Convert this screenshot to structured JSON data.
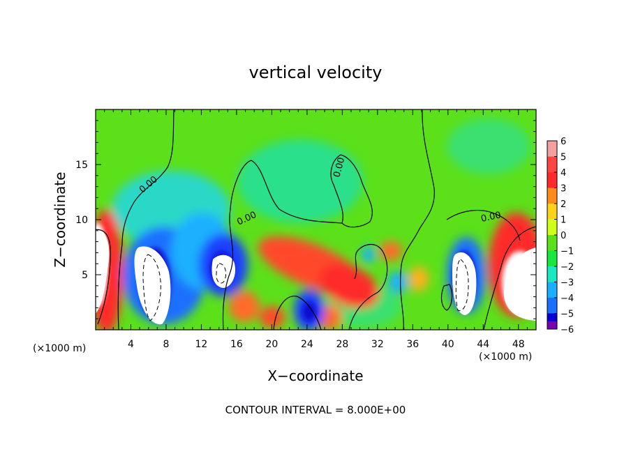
{
  "chart_data": {
    "type": "heatmap",
    "title": "vertical velocity",
    "xlabel": "X−coordinate",
    "ylabel": "Z−coordinate",
    "x_unit_left": "(×1000 m)",
    "x_unit_right": "(×1000 m)",
    "footer": "CONTOUR INTERVAL = 8.000E+00",
    "contour_label": "0.00",
    "xlim": [
      0,
      50
    ],
    "ylim": [
      0,
      20
    ],
    "x_ticks": [
      4,
      8,
      12,
      16,
      20,
      24,
      28,
      32,
      36,
      40,
      44,
      48
    ],
    "y_ticks": [
      5,
      10,
      15
    ],
    "colorbar": {
      "levels": [
        "6",
        "5",
        "4",
        "3",
        "2",
        "1",
        "0",
        "−1",
        "−2",
        "−3",
        "−4",
        "−5",
        "−6"
      ],
      "colors": [
        "#f4a0a0",
        "#ff4444",
        "#ff2a2a",
        "#ff8c1a",
        "#ffd21a",
        "#cfff1a",
        "#5ce01a",
        "#16e840",
        "#1ae8c0",
        "#1ab0ff",
        "#1a70ff",
        "#0000d0",
        "#7a00b0"
      ]
    },
    "features": [
      {
        "kind": "updraft",
        "x": 0.6,
        "z": 6.5,
        "value": 6
      },
      {
        "kind": "downdraft",
        "x": 6.5,
        "z": 4.5,
        "value": -6
      },
      {
        "kind": "downdraft",
        "x": 14.0,
        "z": 6.0,
        "value": -5
      },
      {
        "kind": "updraft",
        "x": 25.5,
        "z": 5.5,
        "value": 4
      },
      {
        "kind": "downdraft",
        "x": 24.0,
        "z": 1.5,
        "value": -5
      },
      {
        "kind": "downdraft",
        "x": 42.0,
        "z": 4.5,
        "value": -6
      },
      {
        "kind": "updraft",
        "x": 47.5,
        "z": 6.0,
        "value": 6
      }
    ]
  }
}
